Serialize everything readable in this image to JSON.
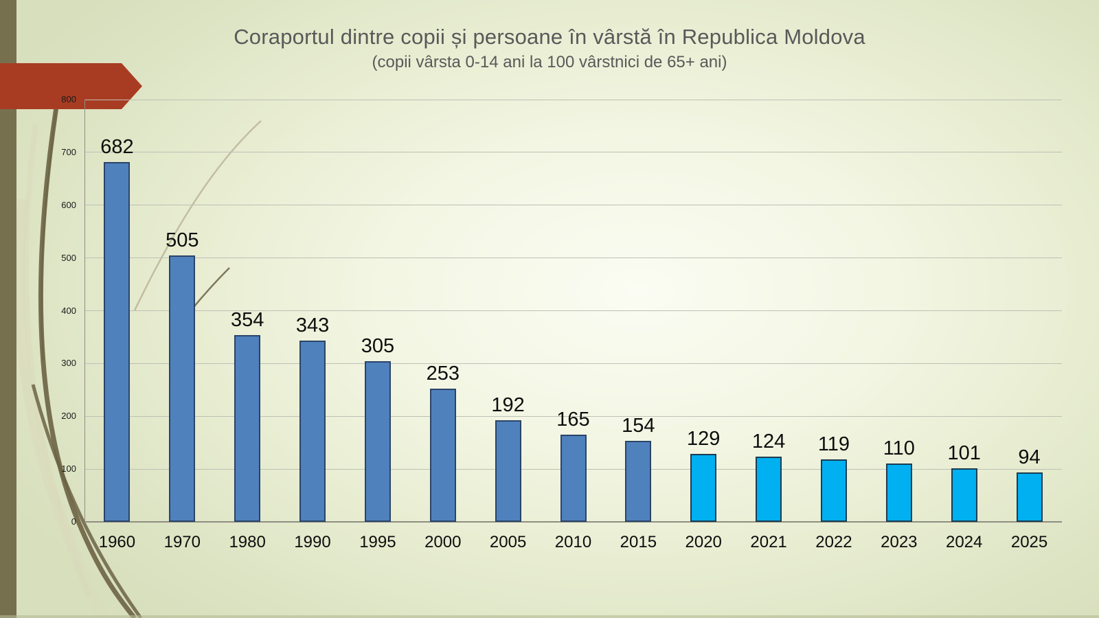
{
  "slide": {
    "title": "Coraportul dintre copii și persoane în vârstă în Republica Moldova",
    "subtitle": "(copii vârsta 0-14 ani la 100 vârstnici de 65+ ani)",
    "colors": {
      "title_text": "#595959",
      "accent_arrow": "#a83c22",
      "side_stripe": "#77704f",
      "curve_dark": "#6b6344",
      "curve_light": "#d9dabb",
      "curve_faint": "#b9b295",
      "gridline": "#bdc0b4",
      "axis_line": "#8e8e82"
    }
  },
  "chart_data": {
    "type": "bar",
    "title": "Coraportul dintre copii și persoane în vârstă în Republica Moldova (copii vârsta 0-14 ani la 100 vârstnici de 65+ ani)",
    "xlabel": "",
    "ylabel": "",
    "categories": [
      "1960",
      "1970",
      "1980",
      "1990",
      "1995",
      "2000",
      "2005",
      "2010",
      "2015",
      "2020",
      "2021",
      "2022",
      "2023",
      "2024",
      "2025"
    ],
    "values": [
      682,
      505,
      354,
      343,
      305,
      253,
      192,
      165,
      154,
      129,
      124,
      119,
      110,
      101,
      94
    ],
    "point_colors": [
      "#4f81bd",
      "#4f81bd",
      "#4f81bd",
      "#4f81bd",
      "#4f81bd",
      "#4f81bd",
      "#4f81bd",
      "#4f81bd",
      "#4f81bd",
      "#00b0f0",
      "#00b0f0",
      "#00b0f0",
      "#00b0f0",
      "#00b0f0",
      "#00b0f0"
    ],
    "point_border_colors": [
      "#2a4468",
      "#2a4468",
      "#2a4468",
      "#2a4468",
      "#2a4468",
      "#2a4468",
      "#2a4468",
      "#2a4468",
      "#2a4468",
      "#1d3c50",
      "#1d3c50",
      "#1d3c50",
      "#1d3c50",
      "#1d3c50",
      "#1d3c50"
    ],
    "ylim": [
      0,
      800
    ],
    "yticks": [
      0,
      100,
      200,
      300,
      400,
      500,
      600,
      700,
      800
    ],
    "grid": true,
    "legend": false,
    "data_labels": true
  }
}
